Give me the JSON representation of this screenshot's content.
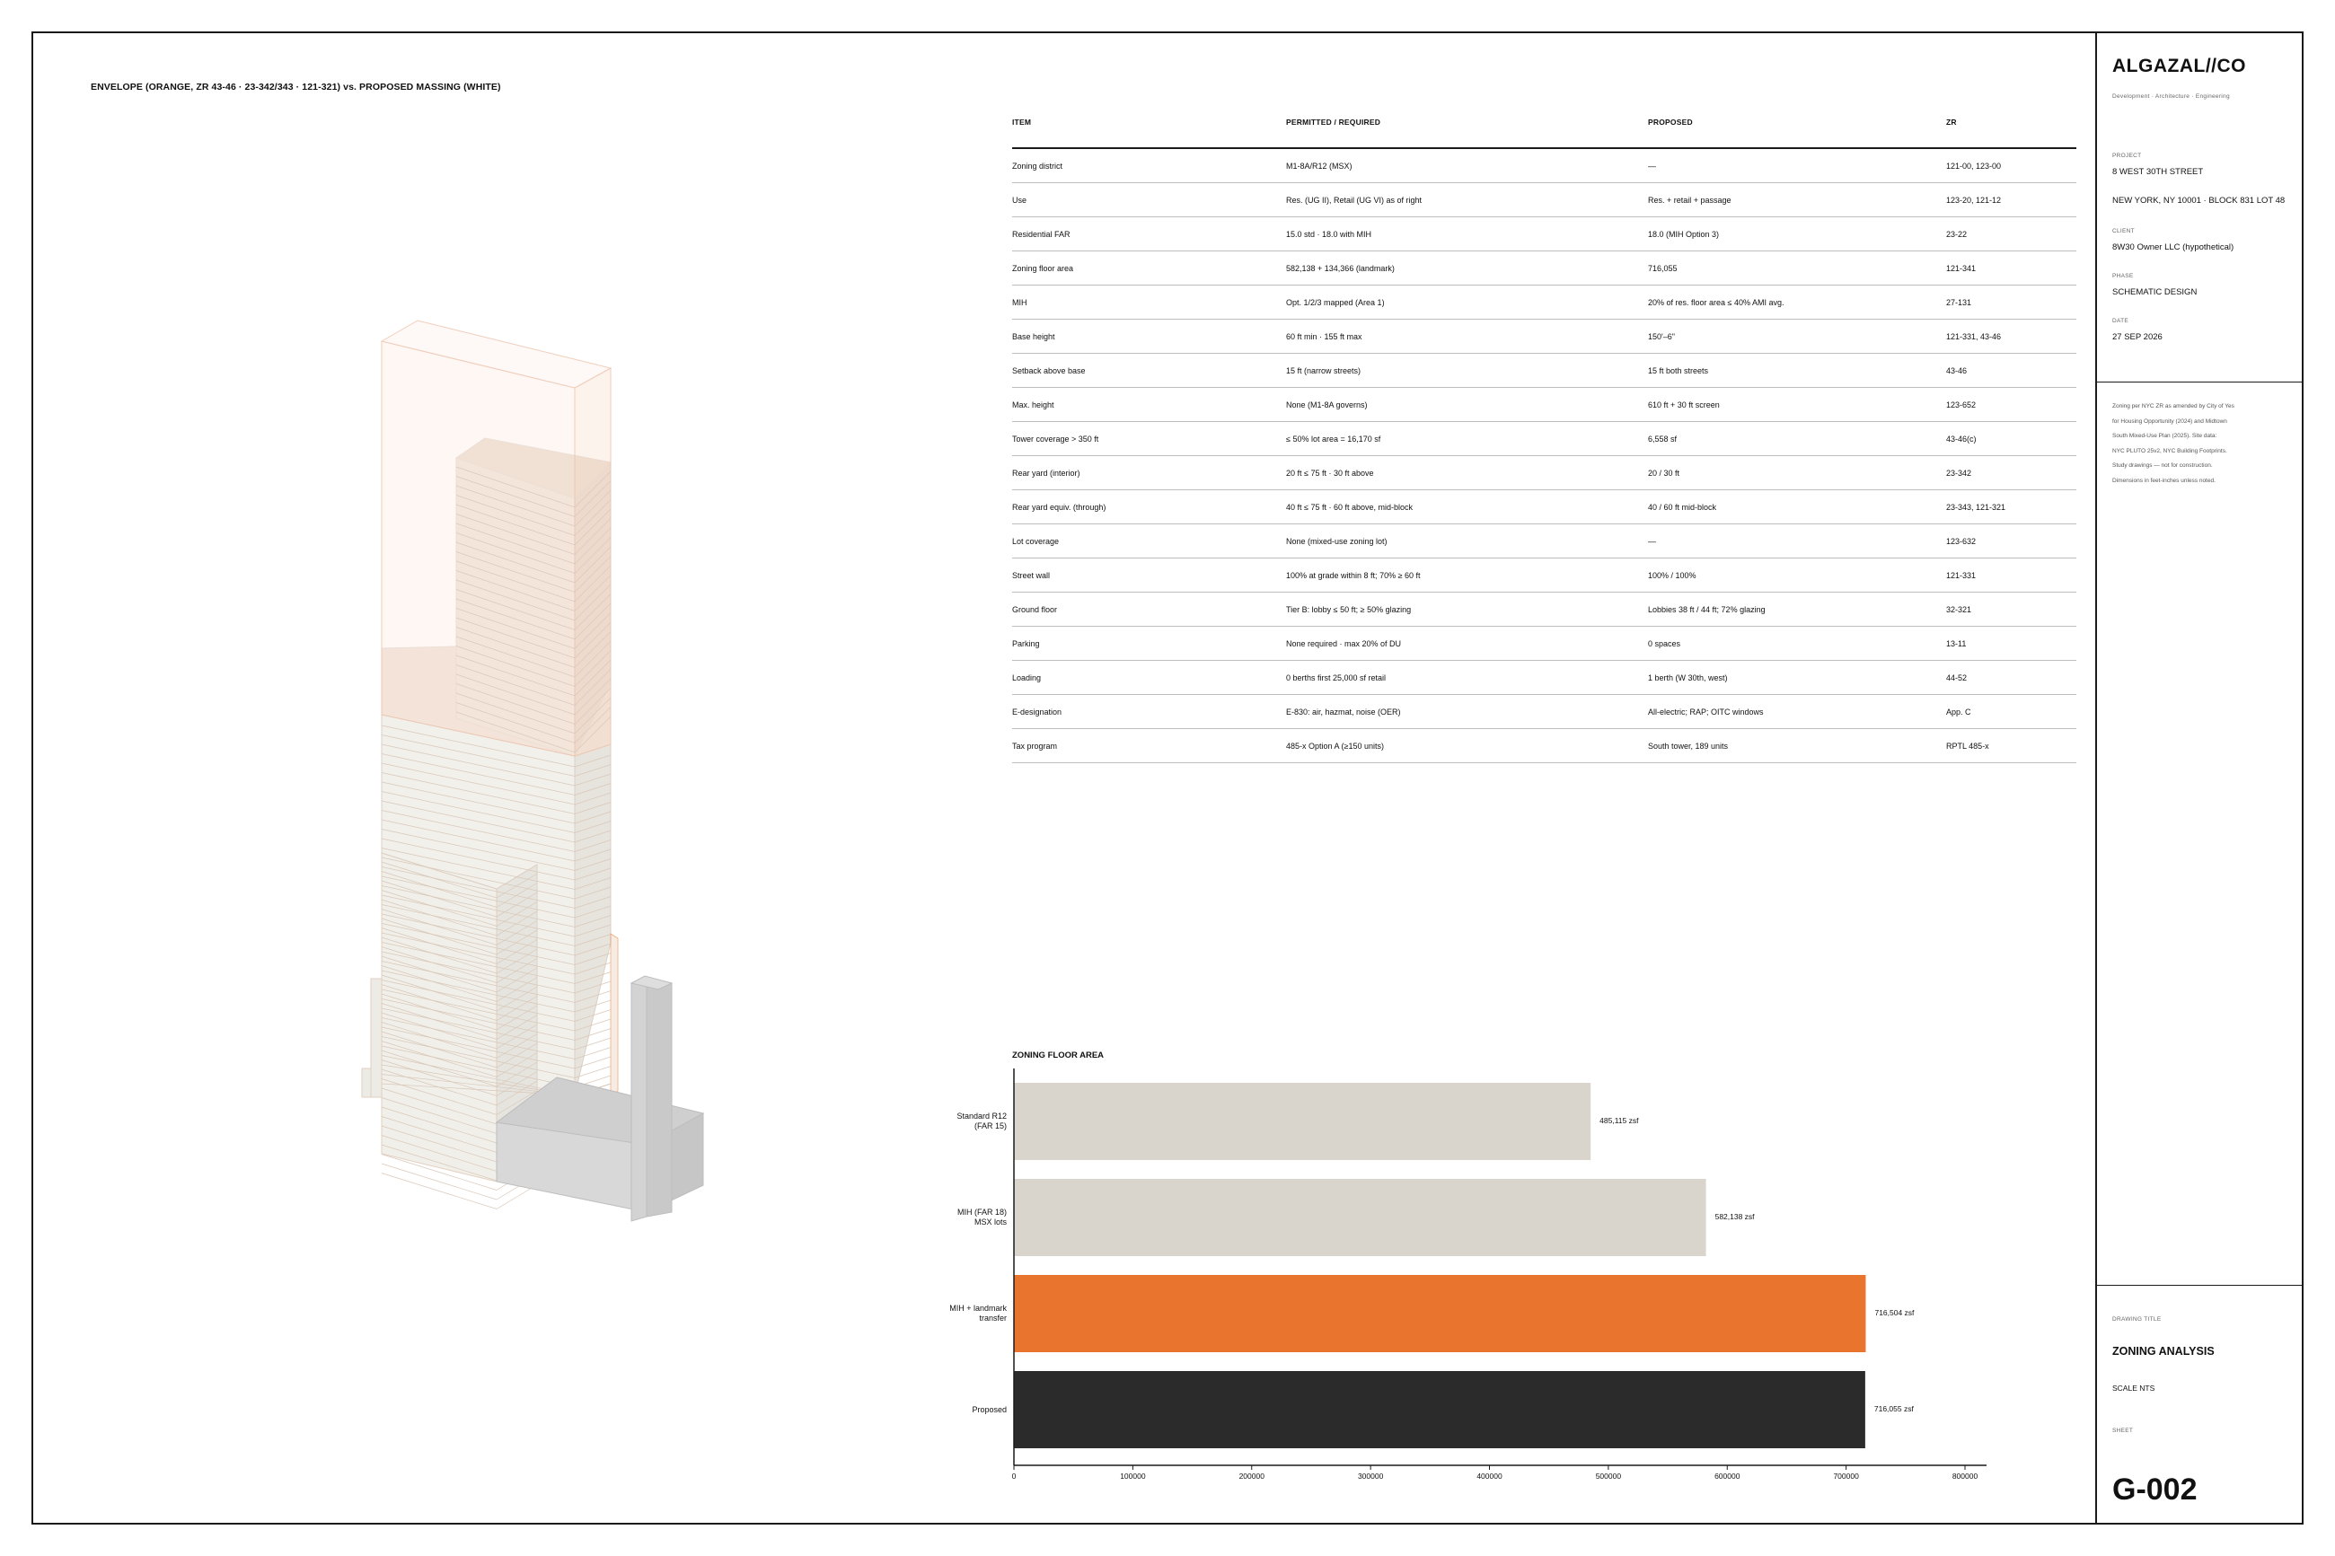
{
  "envelope_title": "ENVELOPE (ORANGE, ZR 43-46 · 23-342/343 · 121-321) vs. PROPOSED MASSING (WHITE)",
  "zoning_table": {
    "headers": [
      "ITEM",
      "PERMITTED / REQUIRED",
      "PROPOSED",
      "ZR"
    ],
    "rows": [
      [
        "Zoning district",
        "M1-8A/R12 (MSX)",
        "—",
        "121-00, 123-00"
      ],
      [
        "Use",
        "Res. (UG II), Retail (UG VI) as of right",
        "Res. + retail + passage",
        "123-20, 121-12"
      ],
      [
        "Residential FAR",
        "15.0 std · 18.0 with MIH",
        "18.0 (MIH Option 3)",
        "23-22"
      ],
      [
        "Zoning floor area",
        "582,138 + 134,366 (landmark)",
        "716,055",
        "121-341"
      ],
      [
        "MIH",
        "Opt. 1/2/3 mapped (Area 1)",
        "20% of res. floor area ≤ 40% AMI avg.",
        "27-131"
      ],
      [
        "Base height",
        "60 ft min · 155 ft max",
        "150'–6\"",
        "121-331, 43-46"
      ],
      [
        "Setback above base",
        "15 ft (narrow streets)",
        "15 ft both streets",
        "43-46"
      ],
      [
        "Max. height",
        "None (M1-8A governs)",
        "610 ft + 30 ft screen",
        "123-652"
      ],
      [
        "Tower coverage > 350 ft",
        "≤ 50% lot area = 16,170 sf",
        "6,558 sf",
        "43-46(c)"
      ],
      [
        "Rear yard (interior)",
        "20 ft ≤ 75 ft · 30 ft above",
        "20 / 30 ft",
        "23-342"
      ],
      [
        "Rear yard equiv. (through)",
        "40 ft ≤ 75 ft · 60 ft above, mid-block",
        "40 / 60 ft mid-block",
        "23-343, 121-321"
      ],
      [
        "Lot coverage",
        "None (mixed-use zoning lot)",
        "—",
        "123-632"
      ],
      [
        "Street wall",
        "100% at grade within 8 ft; 70% ≥ 60 ft",
        "100% / 100%",
        "121-331"
      ],
      [
        "Ground floor",
        "Tier B: lobby ≤ 50 ft; ≥ 50% glazing",
        "Lobbies 38 ft / 44 ft; 72% glazing",
        "32-321"
      ],
      [
        "Parking",
        "None required · max 20% of DU",
        "0 spaces",
        "13-11"
      ],
      [
        "Loading",
        "0 berths first 25,000 sf retail",
        "1 berth (W 30th, west)",
        "44-52"
      ],
      [
        "E-designation",
        "E-830: air, hazmat, noise (OER)",
        "All-electric; RAP; OITC windows",
        "App. C"
      ],
      [
        "Tax program",
        "485-x Option A (≥150 units)",
        "South tower, 189 units",
        "RPTL 485-x"
      ]
    ]
  },
  "chart_data": {
    "type": "bar",
    "orientation": "horizontal",
    "title": "ZONING FLOOR AREA",
    "categories": [
      "Standard R12\n(FAR 15)",
      "MIH (FAR 18)\nMSX lots",
      "MIH + landmark\ntransfer",
      "Proposed"
    ],
    "values": [
      485115,
      582138,
      716504,
      716055
    ],
    "value_labels": [
      "485,115 zsf",
      "582,138 zsf",
      "716,504 zsf",
      "716,055 zsf"
    ],
    "colors": [
      "#d9d5cc",
      "#d9d5cc",
      "#e8742d",
      "#2b2b2b"
    ],
    "xlim": [
      0,
      800000
    ],
    "xticks": [
      0,
      100000,
      200000,
      300000,
      400000,
      500000,
      600000,
      700000,
      800000
    ],
    "xlabel": "",
    "ylabel": "",
    "grid": false,
    "legend": "none"
  },
  "title_block": {
    "firm": "ALGAZAL//CO",
    "firm_tagline": "Development · Architecture · Engineering",
    "project_label": "PROJECT",
    "project_line1": "8 WEST 30TH STREET",
    "project_line2": "NEW YORK, NY 10001 · BLOCK 831 LOT 48",
    "client_label": "CLIENT",
    "client": "8W30 Owner LLC (hypothetical)",
    "phase_label": "PHASE",
    "phase": "SCHEMATIC DESIGN",
    "date_label": "DATE",
    "date": "27 SEP 2026",
    "notes": [
      "Zoning per NYC ZR as amended by City of Yes",
      "for Housing Opportunity (2024) and Midtown",
      "South Mixed-Use Plan (2025). Site data:",
      "NYC PLUTO 25v2, NYC Building Footprints.",
      "Study drawings — not for construction.",
      "Dimensions in feet-inches unless noted."
    ],
    "drawing_title_label": "DRAWING TITLE",
    "drawing_title": "ZONING ANALYSIS",
    "scale": "SCALE NTS",
    "sheet_label": "SHEET",
    "sheet": "G-002"
  },
  "colors": {
    "envelope": "#e8742d",
    "massing": "#f1efe9",
    "context": "#d6d6d6",
    "ink": "#1a1a1a"
  }
}
